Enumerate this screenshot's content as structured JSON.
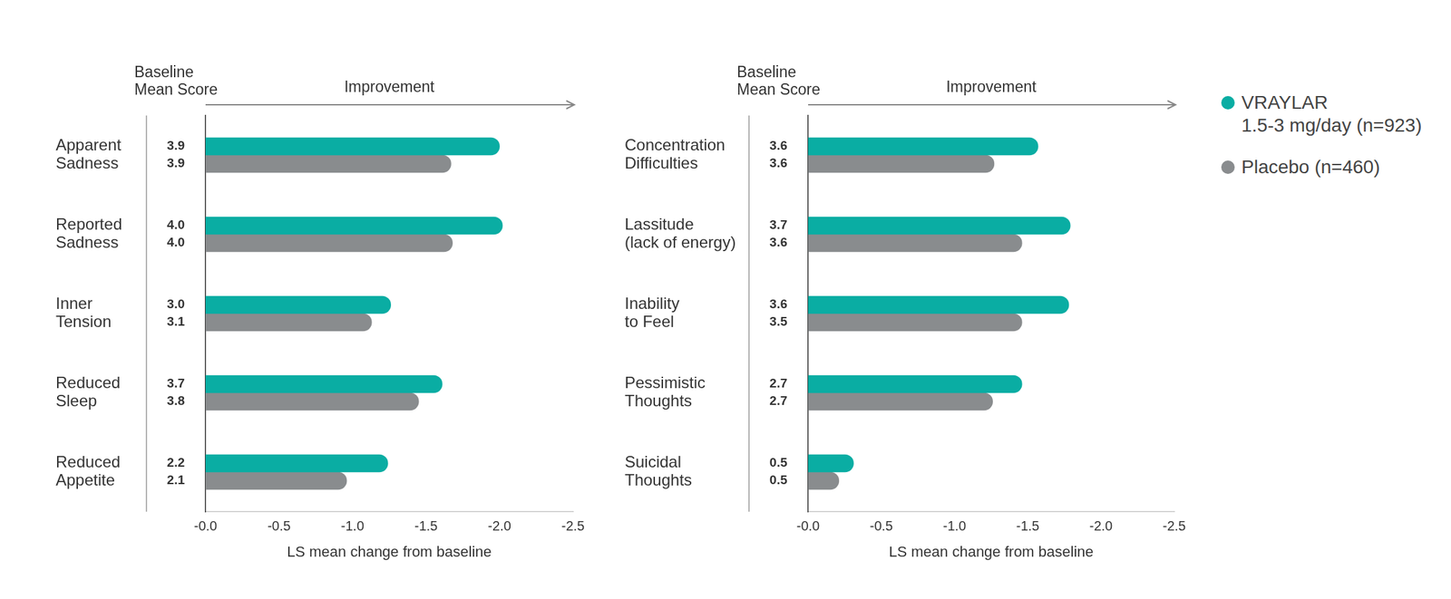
{
  "chart_data": [
    {
      "type": "bar",
      "orientation": "horizontal",
      "column_header": [
        "Baseline",
        "Mean Score"
      ],
      "annotation": "Improvement",
      "x_label": "LS mean change from baseline",
      "categories": [
        [
          "Apparent",
          "Sadness"
        ],
        [
          "Reported",
          "Sadness"
        ],
        [
          "Inner",
          "Tension"
        ],
        [
          "Reduced",
          "Sleep"
        ],
        [
          "Reduced",
          "Appetite"
        ]
      ],
      "series": [
        {
          "color": "#0aada3",
          "values": [
            -2.0,
            -2.02,
            -1.26,
            -1.61,
            -1.24
          ],
          "baseline_mean_score": [
            "3.9",
            "4.0",
            "3.0",
            "3.7",
            "2.2"
          ]
        },
        {
          "color": "#898c8e",
          "values": [
            -1.67,
            -1.68,
            -1.13,
            -1.45,
            -0.96
          ],
          "baseline_mean_score": [
            "3.9",
            "4.0",
            "3.1",
            "3.8",
            "2.1"
          ]
        }
      ],
      "xlim": [
        0,
        -2.5
      ],
      "xticks": [
        {
          "value": 0,
          "label": "-0.0"
        },
        -0.5,
        {
          "value": -1,
          "label": "-1.0"
        },
        -1.5,
        {
          "value": -2,
          "label": "-2.0"
        },
        -2.5
      ],
      "grid": false
    },
    {
      "type": "bar",
      "orientation": "horizontal",
      "column_header": [
        "Baseline",
        "Mean Score"
      ],
      "annotation": "Improvement",
      "x_label": "LS mean change from baseline",
      "categories": [
        [
          "Concentration",
          "Difficulties"
        ],
        [
          "Lassitude",
          "(lack of energy)"
        ],
        [
          "Inability",
          "to Feel"
        ],
        [
          "Pessimistic",
          "Thoughts"
        ],
        [
          "Suicidal",
          "Thoughts"
        ]
      ],
      "series": [
        {
          "name": [
            "VRAYLAR",
            "1.5-3 mg/day (n=923)"
          ],
          "color": "#0aada3",
          "values": [
            -1.57,
            -1.79,
            -1.78,
            -1.46,
            -0.31
          ],
          "baseline_mean_score": [
            "3.6",
            "3.7",
            "3.6",
            "2.7",
            "0.5"
          ]
        },
        {
          "name": [
            "Placebo (n=460)"
          ],
          "color": "#898c8e",
          "values": [
            -1.27,
            -1.46,
            -1.46,
            -1.26,
            -0.21
          ],
          "baseline_mean_score": [
            "3.6",
            "3.6",
            "3.5",
            "2.7",
            "0.5"
          ]
        }
      ],
      "xlim": [
        0,
        -2.5
      ],
      "xticks": [
        {
          "value": 0,
          "label": "-0.0"
        },
        -0.5,
        {
          "value": -1,
          "label": "-1.0"
        },
        -1.5,
        {
          "value": -2,
          "label": "-2.0"
        },
        -2.5
      ],
      "grid": false,
      "legend": "right"
    }
  ]
}
